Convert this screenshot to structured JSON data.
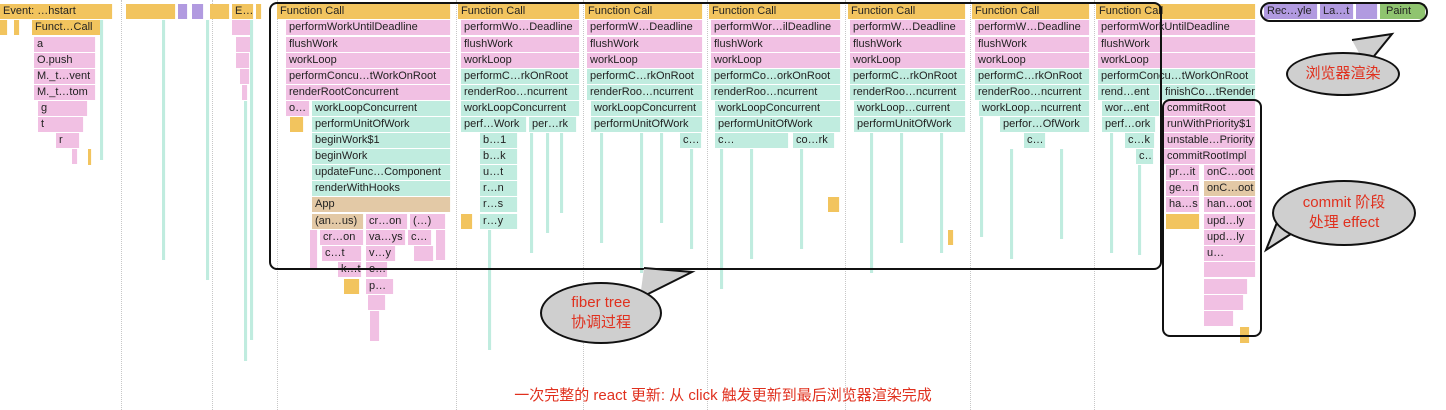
{
  "colors": {
    "task": "#f2c45e",
    "script": "#f1c0e3",
    "render": "#c0ecdf",
    "paint": "#8fc46f",
    "idle": "#e3c9a6",
    "purple": "#b19ae0",
    "annotation_text": "#e0301e",
    "annotation_fill": "#cfcfcf"
  },
  "left_columns": [
    {
      "labels": [
        "Event: …hstart",
        "Funct…Call",
        "a",
        "O.push",
        "M._t…vent",
        "M._t…tom",
        "g",
        "t",
        "r"
      ]
    },
    {
      "labels": [
        "E…"
      ]
    }
  ],
  "columns": [
    {
      "header": "Function Call",
      "labels": [
        "performWorkUntilDeadline",
        "flushWork",
        "workLoop",
        "performConcu…tWorkOnRoot",
        "renderRootConcurrent",
        "o…",
        "workLoopConcurrent",
        "performUnitOfWork",
        "beginWork$1",
        "beginWork",
        "updateFunc…Component",
        "renderWithHooks",
        "App",
        "(an…us)",
        "cr…on",
        "(…)",
        "cr…on",
        "va…ys",
        "c…",
        "c…t",
        "v…y",
        "k…t",
        "e…",
        "p…"
      ]
    },
    {
      "header": "Function Call",
      "labels": [
        "performWo…Deadline",
        "flushWork",
        "workLoop",
        "performC…rkOnRoot",
        "renderRoo…ncurrent",
        "workLoopConcurrent",
        "perf…Work",
        "per…rk",
        "b…1",
        "b…k",
        "u…t",
        "r…n",
        "r…s",
        "r…y"
      ]
    },
    {
      "header": "Function Call",
      "labels": [
        "performW…Deadline",
        "flushWork",
        "workLoop",
        "performC…rkOnRoot",
        "renderRoo…ncurrent",
        "workLoopConcurrent",
        "performUnitOfWork",
        "c…"
      ]
    },
    {
      "header": "Function Call",
      "labels": [
        "performWor…ilDeadline",
        "flushWork",
        "workLoop",
        "performCo…orkOnRoot",
        "renderRoo…ncurrent",
        "workLoopConcurrent",
        "performUnitOfWork",
        "c…",
        "co…rk"
      ]
    },
    {
      "header": "Function Call",
      "labels": [
        "performW…Deadline",
        "flushWork",
        "workLoop",
        "performC…rkOnRoot",
        "renderRoo…ncurrent",
        "workLoop…current",
        "performUnitOfWork"
      ]
    },
    {
      "header": "Function Call",
      "labels": [
        "performW…Deadline",
        "flushWork",
        "workLoop",
        "performC…rkOnRoot",
        "renderRoo…ncurrent",
        "workLoop…ncurrent",
        "perfor…OfWork",
        "c…"
      ]
    },
    {
      "header": "Function Call",
      "labels": [
        "performWorkUntilDeadline",
        "flushWork",
        "workLoop",
        "performConcu…tWorkOnRoot",
        "rend…ent",
        "finishCo…tRender",
        "wor…ent",
        "commitRoot",
        "perf…ork",
        "runWithPriority$1",
        "c…k",
        "unstable…Priority",
        "c…",
        "commitRootImpl",
        "pr…it",
        "onC…oot",
        "ge…n",
        "onC…oot",
        "ha…s",
        "han…oot",
        "upd…ly",
        "upd…ly",
        "u…"
      ]
    },
    {
      "labels": [
        "Rec…yle",
        "La…t",
        "Paint"
      ]
    }
  ],
  "annotations": {
    "browser_render": "浏览器渲染",
    "commit_line1": "commit 阶段",
    "commit_line2": "处理 effect",
    "fiber_line1": "fiber tree",
    "fiber_line2": "协调过程",
    "caption": "一次完整的 react 更新: 从 click 触发更新到最后浏览器渲染完成"
  }
}
